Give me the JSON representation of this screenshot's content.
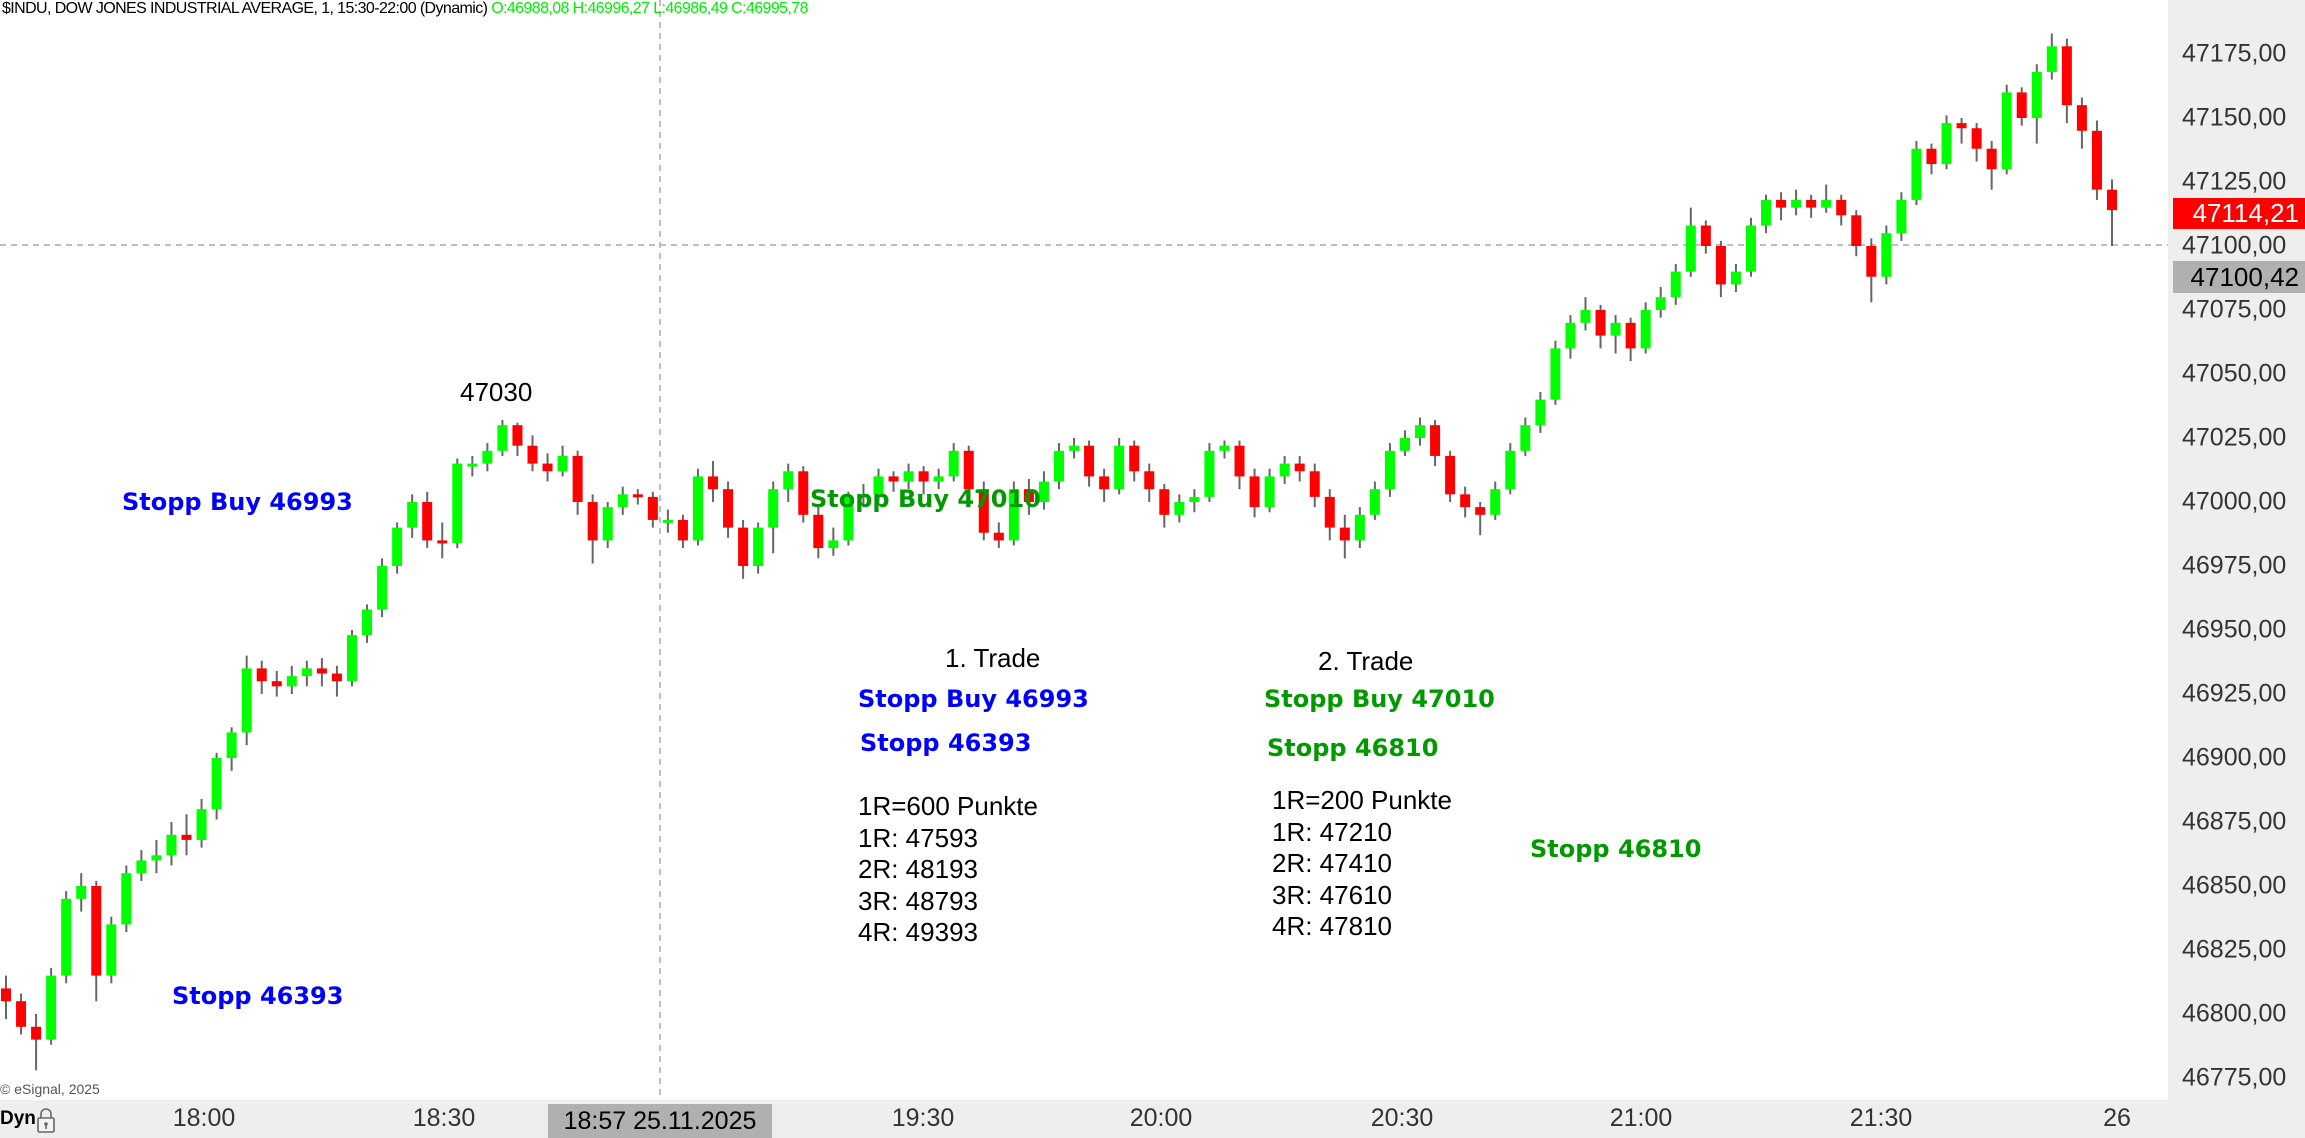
{
  "header": {
    "title": "$INDU, DOW JONES INDUSTRIAL AVERAGE, 1, 15:30-22:00 (Dynamic)",
    "ohlc": "O:46988,08 H:46996,27 L:46986,49 C:46995,78"
  },
  "price_axis": {
    "ticks": [
      "47175,00",
      "47150,00",
      "47125,00",
      "47100,00",
      "47075,00",
      "47050,00",
      "47025,00",
      "47000,00",
      "46975,00",
      "46950,00",
      "46925,00",
      "46900,00",
      "46875,00",
      "46850,00",
      "46825,00",
      "46800,00",
      "46775,00"
    ],
    "last_price": "47114,21",
    "crosshair_price": "47100,42"
  },
  "time_axis": {
    "ticks": [
      "18:00",
      "18:30",
      "19:30",
      "20:00",
      "20:30",
      "21:00",
      "21:30",
      "26"
    ],
    "crosshair_time": "18:57 25.11.2025",
    "mode_label": "Dyn",
    "lock_icon": "lock-icon"
  },
  "footer": {
    "copyright": "© eSignal, 2025"
  },
  "annotations": {
    "peak_label": "47030",
    "left_stop_buy": "Stopp Buy 46993",
    "left_stop": "Stopp 46393",
    "mid_stop_buy": "Stopp Buy 47010",
    "trade1": {
      "title": "1. Trade",
      "stop_buy": "Stopp Buy 46993",
      "stop": "Stopp 46393",
      "lines": [
        "1R=600 Punkte",
        "1R: 47593",
        "2R: 48193",
        "3R: 48793",
        "4R: 49393"
      ]
    },
    "trade2": {
      "title": "2. Trade",
      "stop_buy": "Stopp Buy 47010",
      "stop": "Stopp 46810",
      "lines": [
        "1R=200 Punkte",
        "1R: 47210",
        "2R: 47410",
        "3R: 47610",
        "4R: 47810"
      ]
    },
    "right_stop": "Stopp 46810"
  },
  "colors": {
    "up": "#00ff00",
    "down": "#ff0000",
    "wick": "#666666",
    "blue": "#0000ff",
    "green": "#009900",
    "last_price_bg": "#ff0000",
    "axis_bg": "#eeeeee"
  },
  "chart_data": {
    "type": "candlestick",
    "symbol": "$INDU",
    "interval": "1",
    "ylim": [
      46765,
      47190
    ],
    "grid": false,
    "ohlc": [
      [
        46810,
        46815,
        46798,
        46805
      ],
      [
        46805,
        46808,
        46792,
        46795
      ],
      [
        46795,
        46800,
        46778,
        46790
      ],
      [
        46790,
        46818,
        46788,
        46815
      ],
      [
        46815,
        46848,
        46812,
        46845
      ],
      [
        46845,
        46855,
        46840,
        46850
      ],
      [
        46850,
        46852,
        46805,
        46815
      ],
      [
        46815,
        46838,
        46812,
        46835
      ],
      [
        46835,
        46858,
        46832,
        46855
      ],
      [
        46855,
        46864,
        46852,
        46860
      ],
      [
        46860,
        46868,
        46855,
        46862
      ],
      [
        46862,
        46875,
        46858,
        46870
      ],
      [
        46870,
        46878,
        46862,
        46868
      ],
      [
        46868,
        46884,
        46865,
        46880
      ],
      [
        46880,
        46902,
        46876,
        46900
      ],
      [
        46900,
        46912,
        46895,
        46910
      ],
      [
        46910,
        46940,
        46905,
        46935
      ],
      [
        46935,
        46938,
        46925,
        46930
      ],
      [
        46930,
        46934,
        46924,
        46928
      ],
      [
        46928,
        46936,
        46925,
        46932
      ],
      [
        46932,
        46938,
        46928,
        46935
      ],
      [
        46935,
        46939,
        46928,
        46933
      ],
      [
        46933,
        46936,
        46924,
        46930
      ],
      [
        46930,
        46950,
        46928,
        46948
      ],
      [
        46948,
        46960,
        46945,
        46958
      ],
      [
        46958,
        46978,
        46955,
        46975
      ],
      [
        46975,
        46992,
        46972,
        46990
      ],
      [
        46990,
        47003,
        46986,
        47000
      ],
      [
        47000,
        47004,
        46982,
        46985
      ],
      [
        46985,
        46992,
        46978,
        46984
      ],
      [
        46984,
        47017,
        46982,
        47015
      ],
      [
        47015,
        47018,
        47010,
        47015
      ],
      [
        47015,
        47023,
        47012,
        47020
      ],
      [
        47020,
        47032,
        47018,
        47030
      ],
      [
        47030,
        47031,
        47018,
        47022
      ],
      [
        47022,
        47026,
        47012,
        47015
      ],
      [
        47015,
        47019,
        47008,
        47012
      ],
      [
        47012,
        47022,
        47010,
        47018
      ],
      [
        47018,
        47020,
        46995,
        47000
      ],
      [
        47000,
        47003,
        46976,
        46985
      ],
      [
        46985,
        47000,
        46982,
        46998
      ],
      [
        46998,
        47006,
        46995,
        47003
      ],
      [
        47003,
        47005,
        46999,
        47002
      ],
      [
        47002,
        47004,
        46990,
        46993
      ],
      [
        46993,
        46997,
        46988,
        46993
      ],
      [
        46993,
        46995,
        46982,
        46985
      ],
      [
        46985,
        47013,
        46983,
        47010
      ],
      [
        47010,
        47016,
        47000,
        47005
      ],
      [
        47005,
        47008,
        46986,
        46990
      ],
      [
        46990,
        46993,
        46970,
        46975
      ],
      [
        46975,
        46992,
        46972,
        46990
      ],
      [
        46990,
        47008,
        46980,
        47005
      ],
      [
        47005,
        47015,
        47000,
        47012
      ],
      [
        47012,
        47014,
        46992,
        46995
      ],
      [
        46995,
        46998,
        46978,
        46982
      ],
      [
        46982,
        46990,
        46979,
        46985
      ],
      [
        46985,
        47004,
        46983,
        47002
      ],
      [
        47002,
        47007,
        46998,
        47003
      ],
      [
        47003,
        47013,
        47000,
        47010
      ],
      [
        47010,
        47012,
        47004,
        47008
      ],
      [
        47008,
        47015,
        47005,
        47012
      ],
      [
        47012,
        47014,
        47003,
        47008
      ],
      [
        47008,
        47013,
        47005,
        47010
      ],
      [
        47010,
        47023,
        47008,
        47020
      ],
      [
        47020,
        47022,
        47000,
        47005
      ],
      [
        47005,
        47008,
        46985,
        46988
      ],
      [
        46988,
        46992,
        46982,
        46985
      ],
      [
        46985,
        47008,
        46983,
        47005
      ],
      [
        47005,
        47009,
        46995,
        47000
      ],
      [
        47000,
        47012,
        46997,
        47008
      ],
      [
        47008,
        47023,
        47005,
        47020
      ],
      [
        47020,
        47025,
        47017,
        47022
      ],
      [
        47022,
        47024,
        47006,
        47010
      ],
      [
        47010,
        47013,
        47000,
        47005
      ],
      [
        47005,
        47025,
        47003,
        47022
      ],
      [
        47022,
        47024,
        47008,
        47012
      ],
      [
        47012,
        47015,
        47000,
        47005
      ],
      [
        47005,
        47007,
        46990,
        46995
      ],
      [
        46995,
        47003,
        46992,
        47000
      ],
      [
        47000,
        47005,
        46996,
        47002
      ],
      [
        47002,
        47023,
        47000,
        47020
      ],
      [
        47020,
        47024,
        47017,
        47022
      ],
      [
        47022,
        47024,
        47005,
        47010
      ],
      [
        47010,
        47013,
        46994,
        46998
      ],
      [
        46998,
        47013,
        46996,
        47010
      ],
      [
        47010,
        47018,
        47007,
        47015
      ],
      [
        47015,
        47018,
        47008,
        47012
      ],
      [
        47012,
        47015,
        46998,
        47002
      ],
      [
        47002,
        47005,
        46985,
        46990
      ],
      [
        46990,
        46995,
        46978,
        46985
      ],
      [
        46985,
        46998,
        46982,
        46995
      ],
      [
        46995,
        47008,
        46993,
        47005
      ],
      [
        47005,
        47023,
        47002,
        47020
      ],
      [
        47020,
        47028,
        47018,
        47025
      ],
      [
        47025,
        47033,
        47022,
        47030
      ],
      [
        47030,
        47032,
        47014,
        47018
      ],
      [
        47018,
        47020,
        47000,
        47003
      ],
      [
        47003,
        47006,
        46994,
        46998
      ],
      [
        46998,
        47000,
        46987,
        46995
      ],
      [
        46995,
        47008,
        46993,
        47005
      ],
      [
        47005,
        47023,
        47003,
        47020
      ],
      [
        47020,
        47033,
        47018,
        47030
      ],
      [
        47030,
        47043,
        47027,
        47040
      ],
      [
        47040,
        47063,
        47038,
        47060
      ],
      [
        47060,
        47073,
        47056,
        47070
      ],
      [
        47070,
        47080,
        47067,
        47075
      ],
      [
        47075,
        47077,
        47060,
        47065
      ],
      [
        47065,
        47073,
        47058,
        47070
      ],
      [
        47070,
        47072,
        47055,
        47060
      ],
      [
        47060,
        47078,
        47058,
        47075
      ],
      [
        47075,
        47084,
        47072,
        47080
      ],
      [
        47080,
        47093,
        47077,
        47090
      ],
      [
        47090,
        47115,
        47088,
        47108
      ],
      [
        47108,
        47110,
        47097,
        47100
      ],
      [
        47100,
        47102,
        47080,
        47085
      ],
      [
        47085,
        47093,
        47082,
        47090
      ],
      [
        47090,
        47111,
        47088,
        47108
      ],
      [
        47108,
        47120,
        47105,
        47118
      ],
      [
        47118,
        47121,
        47110,
        47115
      ],
      [
        47115,
        47122,
        47112,
        47118
      ],
      [
        47118,
        47120,
        47111,
        47115
      ],
      [
        47115,
        47124,
        47113,
        47118
      ],
      [
        47118,
        47120,
        47108,
        47112
      ],
      [
        47112,
        47114,
        47096,
        47100
      ],
      [
        47100,
        47103,
        47078,
        47088
      ],
      [
        47088,
        47108,
        47085,
        47105
      ],
      [
        47105,
        47121,
        47102,
        47118
      ],
      [
        47118,
        47141,
        47116,
        47138
      ],
      [
        47138,
        47140,
        47128,
        47132
      ],
      [
        47132,
        47151,
        47130,
        47148
      ],
      [
        47148,
        47150,
        47140,
        47146
      ],
      [
        47146,
        47148,
        47133,
        47138
      ],
      [
        47138,
        47141,
        47122,
        47130
      ],
      [
        47130,
        47163,
        47128,
        47160
      ],
      [
        47160,
        47162,
        47147,
        47150
      ],
      [
        47150,
        47171,
        47140,
        47168
      ],
      [
        47168,
        47183,
        47165,
        47178
      ],
      [
        47178,
        47181,
        47148,
        47155
      ],
      [
        47155,
        47158,
        47138,
        47145
      ],
      [
        47145,
        47149,
        47118,
        47122
      ],
      [
        47122,
        47126,
        47100,
        47114
      ]
    ]
  }
}
